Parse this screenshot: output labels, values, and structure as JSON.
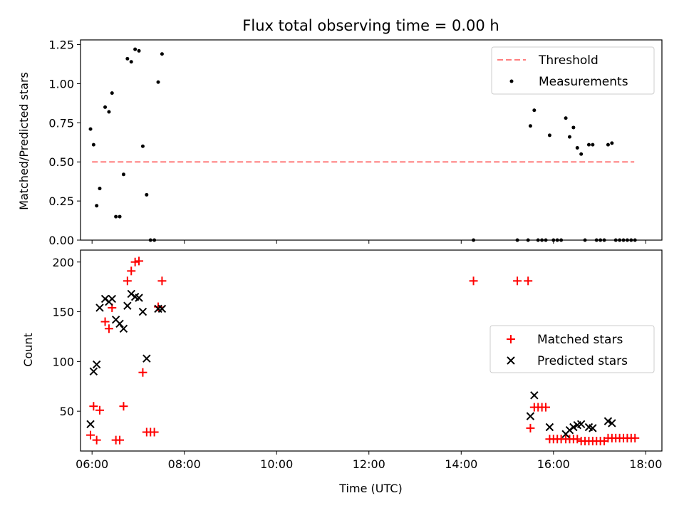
{
  "title": "Flux total observing time = 0.00 h",
  "xlabel": "Time (UTC)",
  "x_ticks": [
    "06:00",
    "08:00",
    "10:00",
    "12:00",
    "14:00",
    "16:00",
    "18:00"
  ],
  "colors": {
    "threshold": "#ff7f7f",
    "measurements": "#000000",
    "matched": "#ff0000",
    "predicted": "#000000"
  },
  "chart_data": [
    {
      "type": "scatter",
      "ylabel": "Matched/Predicted stars",
      "xlim": [
        "05:45",
        "18:21"
      ],
      "ylim": [
        0,
        1.28
      ],
      "y_ticks": [
        "0.00",
        "0.25",
        "0.50",
        "0.75",
        "1.00",
        "1.25"
      ],
      "legend_position": "top-right",
      "threshold": {
        "name": "Threshold",
        "value": 0.5,
        "x_range": [
          "06:00",
          "17:45"
        ]
      },
      "series": [
        {
          "name": "Measurements",
          "points": [
            [
              "05:58",
              0.71
            ],
            [
              "06:02",
              0.61
            ],
            [
              "06:06",
              0.22
            ],
            [
              "06:10",
              0.33
            ],
            [
              "06:17",
              0.85
            ],
            [
              "06:22",
              0.82
            ],
            [
              "06:26",
              0.94
            ],
            [
              "06:31",
              0.15
            ],
            [
              "06:36",
              0.15
            ],
            [
              "06:41",
              0.42
            ],
            [
              "06:46",
              1.16
            ],
            [
              "06:51",
              1.14
            ],
            [
              "06:56",
              1.22
            ],
            [
              "07:01",
              1.21
            ],
            [
              "07:06",
              0.6
            ],
            [
              "07:11",
              0.29
            ],
            [
              "07:16",
              0.0
            ],
            [
              "07:21",
              0.0
            ],
            [
              "07:26",
              1.01
            ],
            [
              "07:31",
              1.19
            ],
            [
              "14:16",
              0.0
            ],
            [
              "15:13",
              0.0
            ],
            [
              "15:27",
              0.0
            ],
            [
              "15:30",
              0.73
            ],
            [
              "15:35",
              0.83
            ],
            [
              "15:40",
              0.0
            ],
            [
              "15:45",
              0.0
            ],
            [
              "15:50",
              0.0
            ],
            [
              "15:55",
              0.67
            ],
            [
              "16:00",
              0.0
            ],
            [
              "16:05",
              0.0
            ],
            [
              "16:10",
              0.0
            ],
            [
              "16:16",
              0.78
            ],
            [
              "16:21",
              0.66
            ],
            [
              "16:26",
              0.72
            ],
            [
              "16:31",
              0.59
            ],
            [
              "16:36",
              0.55
            ],
            [
              "16:41",
              0.0
            ],
            [
              "16:46",
              0.61
            ],
            [
              "16:51",
              0.61
            ],
            [
              "16:56",
              0.0
            ],
            [
              "17:01",
              0.0
            ],
            [
              "17:06",
              0.0
            ],
            [
              "17:11",
              0.61
            ],
            [
              "17:16",
              0.62
            ],
            [
              "17:21",
              0.0
            ],
            [
              "17:26",
              0.0
            ],
            [
              "17:31",
              0.0
            ],
            [
              "17:36",
              0.0
            ],
            [
              "17:41",
              0.0
            ],
            [
              "17:46",
              0.0
            ]
          ]
        }
      ]
    },
    {
      "type": "scatter",
      "ylabel": "Count",
      "xlim": [
        "05:45",
        "18:21"
      ],
      "ylim": [
        10,
        212
      ],
      "y_ticks": [
        "50",
        "100",
        "150",
        "200"
      ],
      "legend_position": "center-right",
      "series": [
        {
          "name": "Matched stars",
          "marker": "plus",
          "points": [
            [
              "05:58",
              26
            ],
            [
              "06:02",
              55
            ],
            [
              "06:06",
              21
            ],
            [
              "06:10",
              51
            ],
            [
              "06:17",
              140
            ],
            [
              "06:22",
              133
            ],
            [
              "06:26",
              154
            ],
            [
              "06:31",
              21
            ],
            [
              "06:36",
              21
            ],
            [
              "06:41",
              55
            ],
            [
              "06:46",
              181
            ],
            [
              "06:51",
              191
            ],
            [
              "06:56",
              200
            ],
            [
              "07:01",
              201
            ],
            [
              "07:06",
              89
            ],
            [
              "07:11",
              29
            ],
            [
              "07:16",
              29
            ],
            [
              "07:21",
              29
            ],
            [
              "07:26",
              155
            ],
            [
              "07:31",
              181
            ],
            [
              "14:16",
              181
            ],
            [
              "15:13",
              181
            ],
            [
              "15:27",
              181
            ],
            [
              "15:30",
              33
            ],
            [
              "15:35",
              54
            ],
            [
              "15:40",
              54
            ],
            [
              "15:45",
              54
            ],
            [
              "15:50",
              54
            ],
            [
              "15:55",
              22
            ],
            [
              "16:00",
              22
            ],
            [
              "16:05",
              22
            ],
            [
              "16:10",
              22
            ],
            [
              "16:16",
              22
            ],
            [
              "16:21",
              22
            ],
            [
              "16:26",
              22
            ],
            [
              "16:31",
              22
            ],
            [
              "16:36",
              20
            ],
            [
              "16:41",
              20
            ],
            [
              "16:46",
              20
            ],
            [
              "16:51",
              20
            ],
            [
              "16:56",
              20
            ],
            [
              "17:01",
              20
            ],
            [
              "17:06",
              20
            ],
            [
              "17:11",
              23
            ],
            [
              "17:16",
              23
            ],
            [
              "17:21",
              23
            ],
            [
              "17:26",
              23
            ],
            [
              "17:31",
              23
            ],
            [
              "17:36",
              23
            ],
            [
              "17:41",
              23
            ],
            [
              "17:46",
              23
            ]
          ]
        },
        {
          "name": "Predicted stars",
          "marker": "x",
          "points": [
            [
              "05:58",
              37
            ],
            [
              "06:02",
              90
            ],
            [
              "06:06",
              97
            ],
            [
              "06:10",
              154
            ],
            [
              "06:17",
              163
            ],
            [
              "06:22",
              160
            ],
            [
              "06:26",
              163
            ],
            [
              "06:31",
              142
            ],
            [
              "06:36",
              138
            ],
            [
              "06:41",
              133
            ],
            [
              "06:46",
              156
            ],
            [
              "06:51",
              168
            ],
            [
              "06:56",
              165
            ],
            [
              "07:01",
              164
            ],
            [
              "07:06",
              150
            ],
            [
              "07:11",
              103
            ],
            [
              "07:26",
              153
            ],
            [
              "07:31",
              153
            ],
            [
              "15:30",
              45
            ],
            [
              "15:35",
              66
            ],
            [
              "15:55",
              34
            ],
            [
              "16:16",
              27
            ],
            [
              "16:21",
              31
            ],
            [
              "16:26",
              34
            ],
            [
              "16:31",
              36
            ],
            [
              "16:36",
              37
            ],
            [
              "16:46",
              34
            ],
            [
              "16:51",
              33
            ],
            [
              "17:11",
              40
            ],
            [
              "17:16",
              38
            ]
          ]
        }
      ]
    }
  ]
}
